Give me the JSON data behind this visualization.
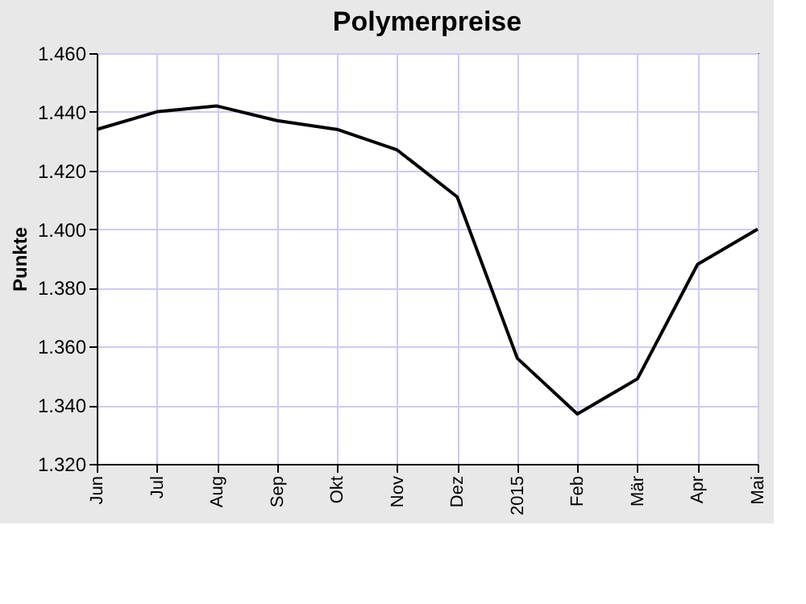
{
  "chart_data": {
    "type": "line",
    "title": "Polymerpreise",
    "ylabel": "Punkte",
    "categories": [
      "Jun",
      "Jul",
      "Aug",
      "Sep",
      "Okt",
      "Nov",
      "Dez",
      "2015",
      "Feb",
      "Mär",
      "Apr",
      "Mai"
    ],
    "series": [
      {
        "color": "#000000",
        "values": [
          1434,
          1440,
          1442,
          1437,
          1434,
          1427,
          1411,
          1356,
          1337,
          1349,
          1388,
          1400
        ]
      }
    ],
    "ylim": [
      1320,
      1460
    ],
    "yticks": [
      {
        "value": 1320,
        "label": "1.320"
      },
      {
        "value": 1340,
        "label": "1.340"
      },
      {
        "value": 1360,
        "label": "1.360"
      },
      {
        "value": 1380,
        "label": "1.380"
      },
      {
        "value": 1400,
        "label": "1.400"
      },
      {
        "value": 1420,
        "label": "1.420"
      },
      {
        "value": 1440,
        "label": "1.440"
      },
      {
        "value": 1460,
        "label": "1.460"
      }
    ],
    "grid": true,
    "marker": "none",
    "line_style": "solid"
  }
}
